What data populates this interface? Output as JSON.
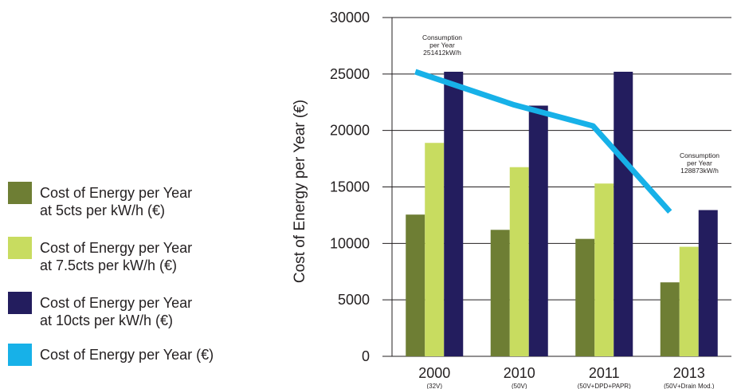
{
  "chart_data": {
    "type": "bar",
    "categories": [
      "2000",
      "2010",
      "2011",
      "2013"
    ],
    "category_sublabels": [
      "(32V)",
      "(50V)",
      "(50V+DPD+PAPR)",
      "(50V+Drain Mod.)"
    ],
    "series": [
      {
        "name": "Cost of Energy per Year\nat 5cts per kW/h (€)",
        "values": [
          12550,
          11200,
          10400,
          6550
        ],
        "color": "#6e7e34",
        "type": "bar"
      },
      {
        "name": "Cost of Energy per Year\nat 7.5cts per kW/h (€)",
        "values": [
          18900,
          16750,
          15300,
          9700
        ],
        "color": "#c8dc60",
        "type": "bar"
      },
      {
        "name": "Cost of Energy per Year\nat 10cts per kW/h (€)",
        "values": [
          25200,
          22200,
          25200,
          12950
        ],
        "color": "#231d5e",
        "type": "bar"
      },
      {
        "name": "Cost of Energy per Year (€)",
        "values": [
          25200,
          22300,
          20400,
          12800
        ],
        "color": "#17b1e8",
        "type": "line"
      }
    ],
    "ylabel": "Cost of Energy per Year (€)",
    "ylim": [
      0,
      30000
    ],
    "yticks": [
      "0",
      "5000",
      "10000",
      "15000",
      "20000",
      "25000",
      "30000"
    ],
    "annotations": [
      {
        "text": "Consumption\nper Year\n251412kW/h",
        "category": "2000"
      },
      {
        "text": "Consumption\nper Year\n128873kW/h",
        "category": "2013"
      }
    ],
    "legend_position": "left"
  }
}
